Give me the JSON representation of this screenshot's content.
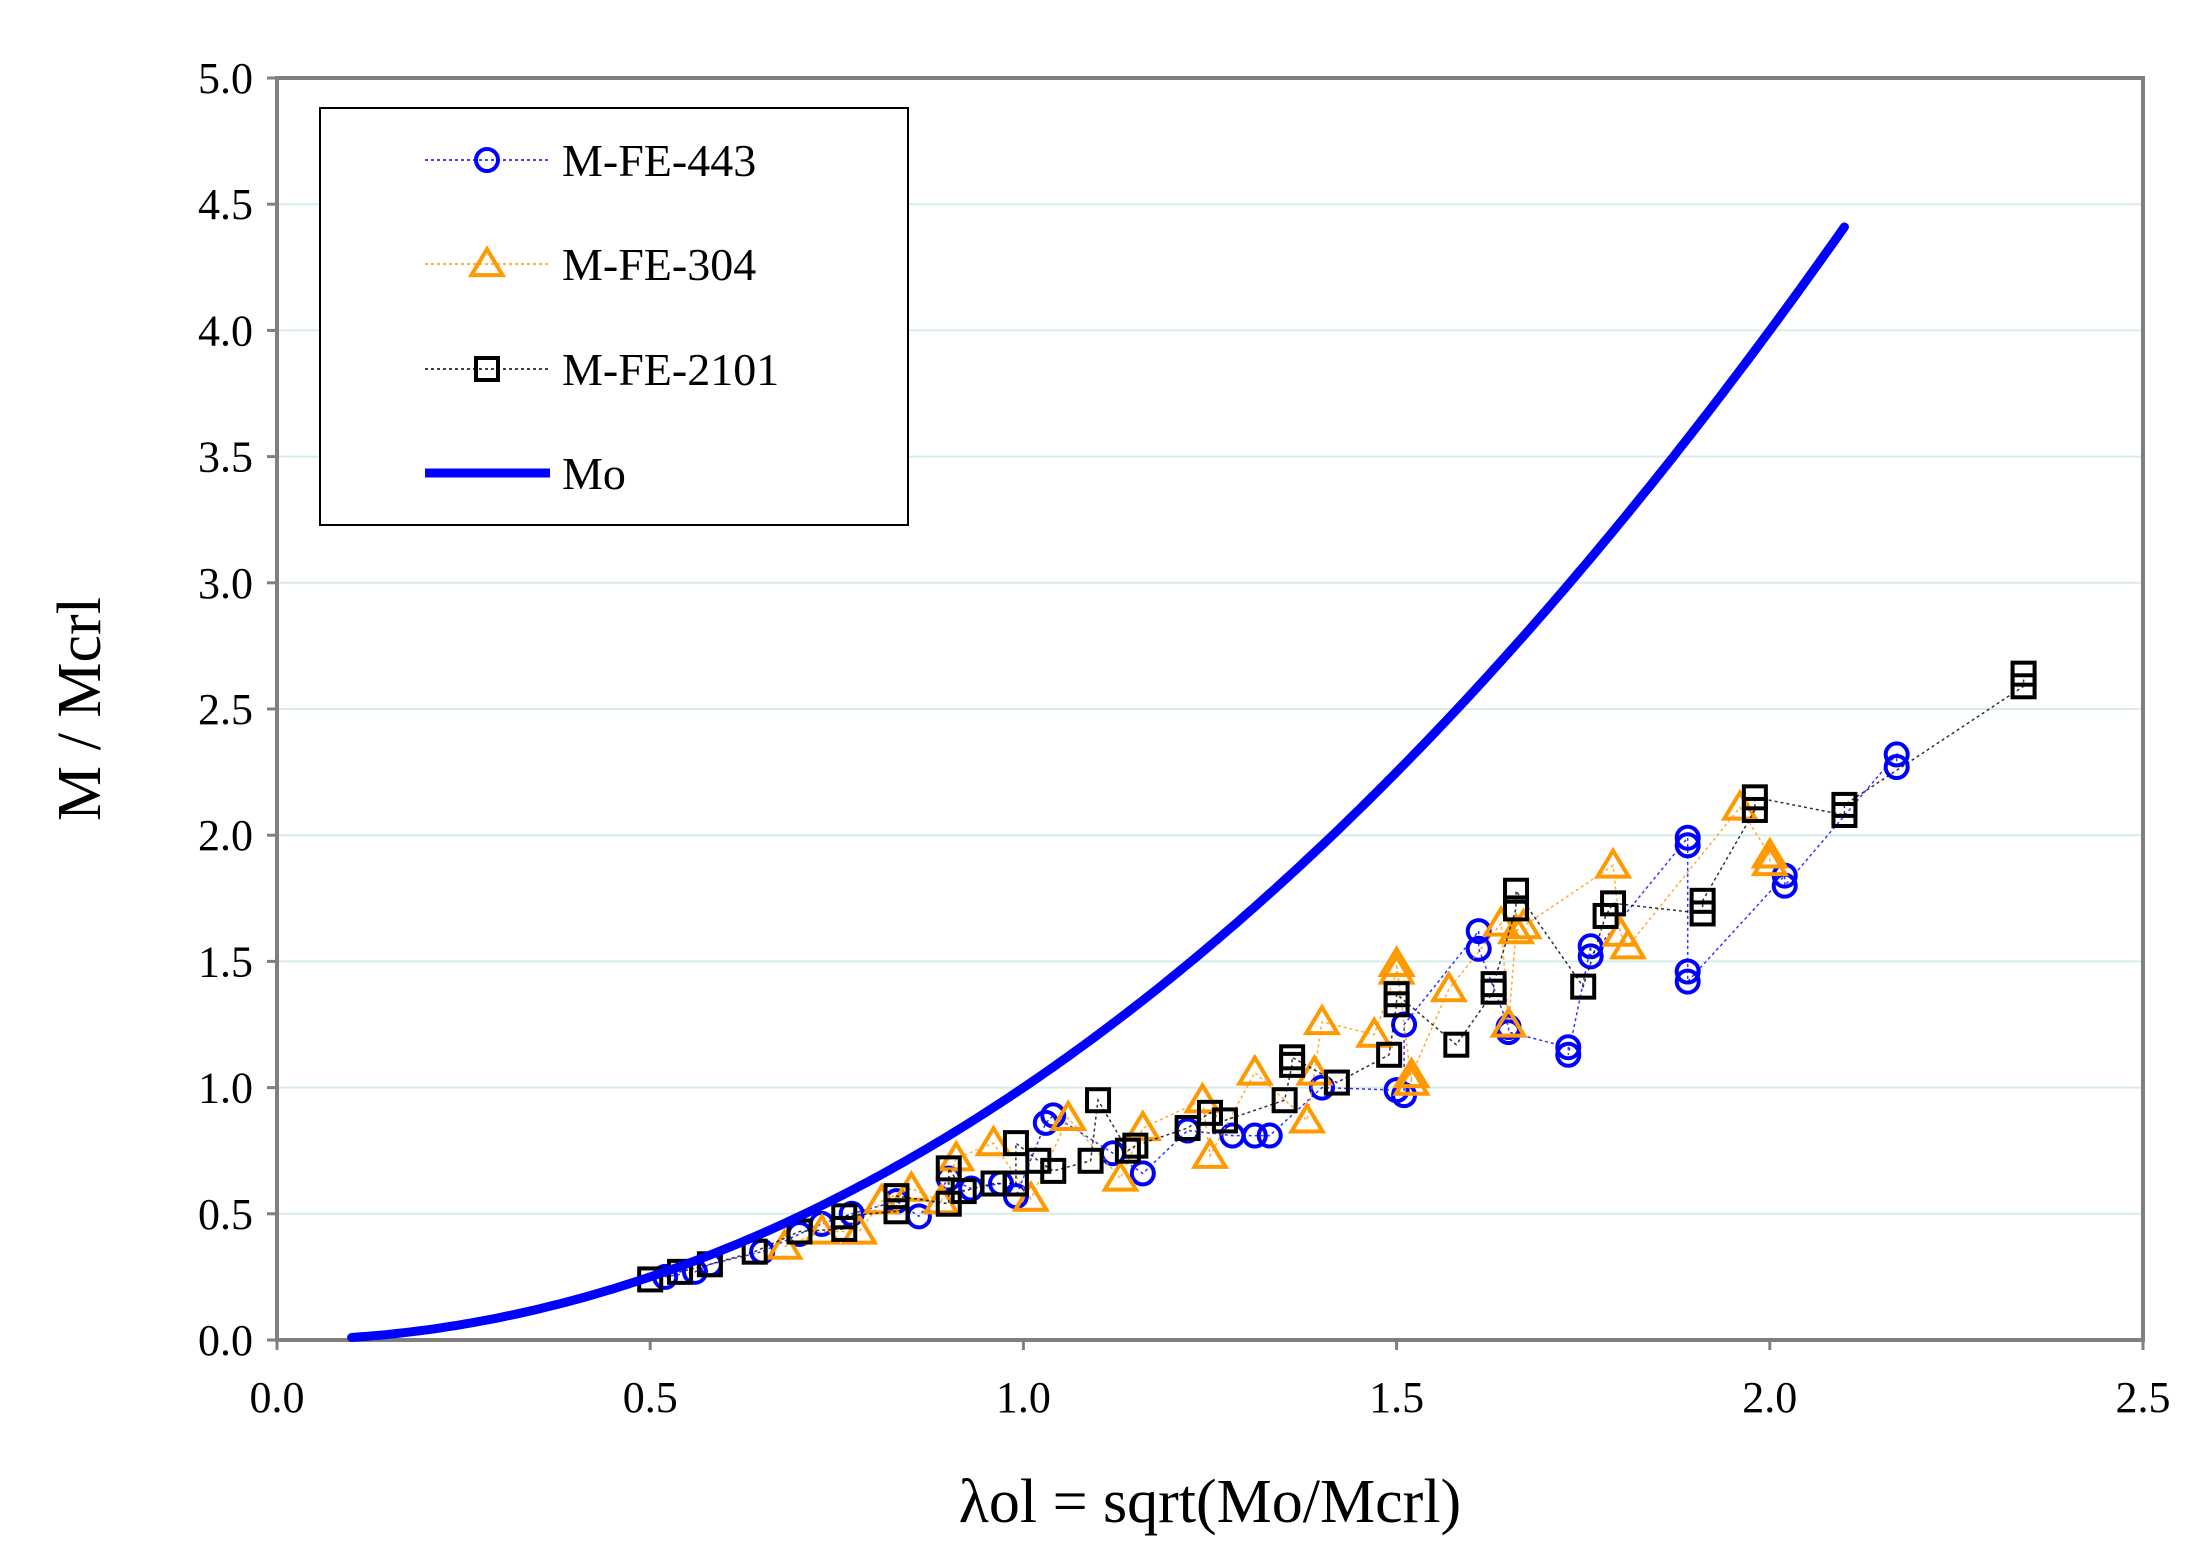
{
  "chart_data": {
    "type": "scatter",
    "title": "",
    "xlabel": "λol = sqrt(Mo/Mcrl)",
    "ylabel": "M / Mcrl",
    "xlim": [
      0.0,
      2.5
    ],
    "ylim": [
      0.0,
      5.0
    ],
    "x_ticks": [
      "0.0",
      "0.5",
      "1.0",
      "1.5",
      "2.0",
      "2.5"
    ],
    "y_ticks": [
      "0.0",
      "0.5",
      "1.0",
      "1.5",
      "2.0",
      "2.5",
      "3.0",
      "3.5",
      "4.0",
      "4.5",
      "5.0"
    ],
    "grid": "horizontal",
    "legend_position": "top-left",
    "colors": {
      "fe443": "#0000ff",
      "fe304": "#ff9900",
      "fe2101": "#000000",
      "mo": "#0000ff",
      "grid": "#d8ecec"
    },
    "series": [
      {
        "name": "M-FE-443",
        "marker": "circle",
        "x": [
          0.52,
          0.56,
          0.58,
          0.65,
          0.7,
          0.73,
          0.77,
          0.83,
          0.86,
          0.9,
          0.93,
          0.97,
          0.99,
          1.03,
          1.04,
          1.12,
          1.16,
          1.22,
          1.28,
          1.31,
          1.33,
          1.4,
          1.5,
          1.51,
          1.51,
          1.61,
          1.61,
          1.65,
          1.65,
          1.73,
          1.73,
          1.76,
          1.76,
          1.89,
          1.89,
          1.89,
          1.89,
          2.02,
          2.02,
          2.17,
          2.17
        ],
        "y": [
          0.25,
          0.27,
          0.3,
          0.35,
          0.42,
          0.46,
          0.5,
          0.55,
          0.49,
          0.64,
          0.6,
          0.62,
          0.57,
          0.86,
          0.89,
          0.74,
          0.66,
          0.83,
          0.81,
          0.81,
          0.81,
          1.0,
          0.99,
          0.97,
          1.25,
          1.62,
          1.55,
          1.24,
          1.22,
          1.16,
          1.13,
          1.56,
          1.52,
          1.99,
          1.96,
          1.46,
          1.42,
          1.84,
          1.8,
          2.32,
          2.27
        ]
      },
      {
        "name": "M-FE-304",
        "marker": "triangle",
        "x": [
          0.68,
          0.73,
          0.78,
          0.81,
          0.85,
          0.89,
          0.91,
          0.96,
          1.01,
          1.06,
          1.13,
          1.16,
          1.24,
          1.25,
          1.31,
          1.38,
          1.39,
          1.4,
          1.47,
          1.5,
          1.5,
          1.52,
          1.52,
          1.57,
          1.64,
          1.65,
          1.66,
          1.67,
          1.79,
          1.8,
          1.81,
          1.96,
          2.0,
          2.0
        ],
        "y": [
          0.37,
          0.43,
          0.43,
          0.55,
          0.6,
          0.55,
          0.72,
          0.78,
          0.56,
          0.88,
          0.64,
          0.84,
          0.95,
          0.73,
          1.06,
          0.87,
          1.06,
          1.26,
          1.21,
          1.46,
          1.49,
          1.02,
          1.05,
          1.39,
          1.65,
          1.25,
          1.62,
          1.64,
          1.88,
          1.61,
          1.56,
          2.11,
          1.92,
          1.89
        ]
      },
      {
        "name": "M-FE-2101",
        "marker": "square",
        "x": [
          0.5,
          0.54,
          0.58,
          0.64,
          0.7,
          0.76,
          0.76,
          0.83,
          0.83,
          0.9,
          0.9,
          0.92,
          0.96,
          0.99,
          0.99,
          1.02,
          1.04,
          1.09,
          1.1,
          1.14,
          1.15,
          1.22,
          1.25,
          1.27,
          1.35,
          1.36,
          1.36,
          1.42,
          1.49,
          1.5,
          1.5,
          1.58,
          1.63,
          1.63,
          1.66,
          1.66,
          1.75,
          1.78,
          1.79,
          1.91,
          1.91,
          1.98,
          1.98,
          2.1,
          2.1,
          2.34,
          2.34
        ],
        "y": [
          0.24,
          0.27,
          0.3,
          0.35,
          0.43,
          0.44,
          0.49,
          0.51,
          0.57,
          0.54,
          0.68,
          0.59,
          0.62,
          0.62,
          0.78,
          0.71,
          0.67,
          0.71,
          0.95,
          0.75,
          0.77,
          0.84,
          0.9,
          0.87,
          0.95,
          1.09,
          1.12,
          1.02,
          1.13,
          1.33,
          1.37,
          1.17,
          1.38,
          1.41,
          1.71,
          1.78,
          1.4,
          1.68,
          1.73,
          1.69,
          1.74,
          2.1,
          2.15,
          2.08,
          2.12,
          2.59,
          2.64
        ]
      },
      {
        "name": "Mo",
        "type": "line",
        "equation": "M/Mcrl = λol^2",
        "x_range": [
          0.1,
          2.1
        ]
      }
    ]
  }
}
